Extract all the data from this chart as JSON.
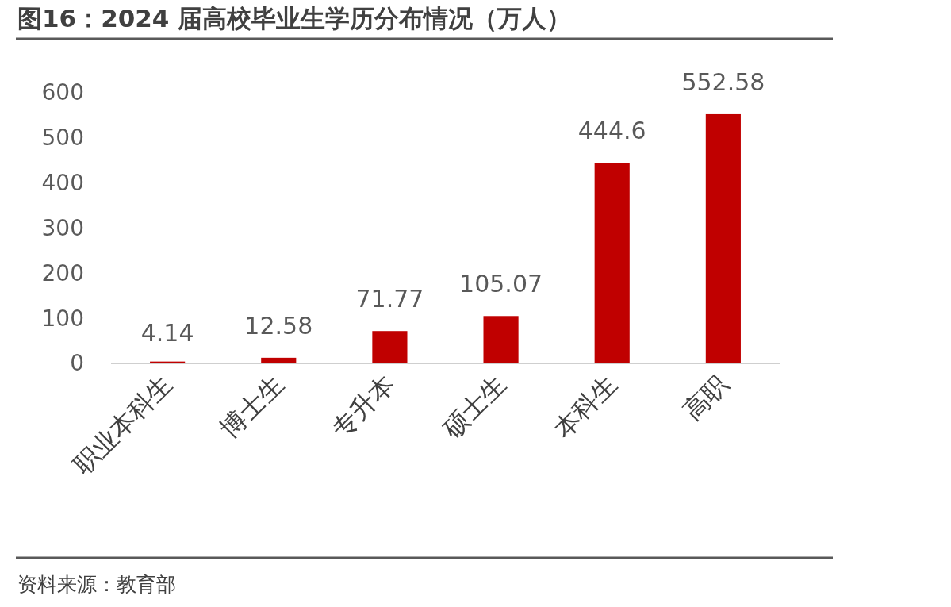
{
  "chart_data": {
    "type": "bar",
    "title": "图16：2024 届高校毕业生学历分布情况（万人）",
    "categories": [
      "职业本科生",
      "博士生",
      "专升本",
      "硕士生",
      "本科生",
      "高职"
    ],
    "values": [
      4.14,
      12.58,
      71.77,
      105.07,
      444.6,
      552.58
    ],
    "color": "#c00000",
    "ylim": [
      0,
      600
    ],
    "yticks": [
      0,
      100,
      200,
      300,
      400,
      500,
      600
    ],
    "grid": false,
    "data_labels": true,
    "annotations": [
      "资料来源：教育部"
    ]
  }
}
